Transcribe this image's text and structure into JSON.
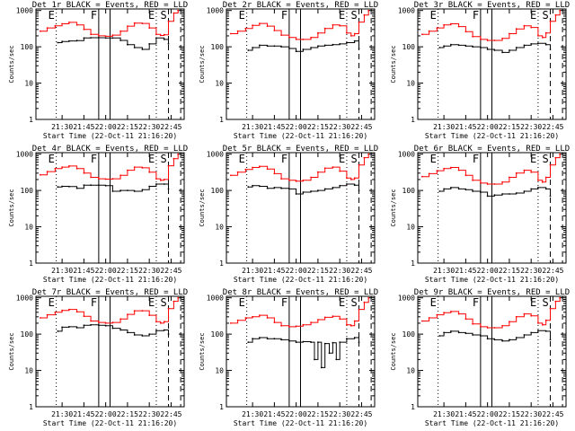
{
  "colors": {
    "events": "#000000",
    "lld": "#ff0000",
    "marker": "#000000",
    "background": "#ffffff"
  },
  "common": {
    "ylabel": "Counts/sec",
    "xlabel": "Start Time (22-Oct-11 21:16:20)",
    "xticks": [
      "21:30",
      "21:45",
      "22:00",
      "22:15",
      "22:30",
      "22:45"
    ],
    "yticks": [
      "1",
      "10",
      "100",
      "1000"
    ],
    "markers": [
      {
        "label": "E",
        "style": "dotted"
      },
      {
        "label": "F",
        "style": "solid"
      },
      {
        "label": "",
        "style": "solid"
      },
      {
        "label": "E",
        "style": "dotted"
      },
      {
        "label": "S",
        "style": "dashed"
      },
      {
        "label": "",
        "style": "dashed"
      }
    ]
  },
  "chart_data": [
    {
      "type": "line",
      "title": "Det 1r BLACK = Events, RED = LLD",
      "xlabel": "Start Time (22-Oct-11 21:16:20)",
      "ylabel": "Counts/sec",
      "ylog": true,
      "ylim": [
        1,
        1100
      ],
      "series": [
        {
          "key": "events",
          "x": [
            21.45,
            21.5,
            21.58,
            21.67,
            21.75,
            21.83,
            21.92,
            22.0,
            22.08,
            22.17,
            22.25,
            22.33,
            22.42,
            22.5,
            22.58,
            22.67,
            22.72
          ],
          "values": [
            130,
            140,
            145,
            148,
            175,
            178,
            178,
            175,
            175,
            150,
            115,
            95,
            85,
            120,
            175,
            160,
            120
          ]
        },
        {
          "key": "lld",
          "x": [
            21.25,
            21.33,
            21.42,
            21.5,
            21.58,
            21.67,
            21.75,
            21.83,
            21.92,
            22.0,
            22.08,
            22.17,
            22.25,
            22.33,
            22.42,
            22.5,
            22.58,
            22.63,
            22.67,
            22.72,
            22.78,
            22.83
          ],
          "values": [
            270,
            330,
            380,
            430,
            470,
            400,
            300,
            220,
            200,
            195,
            210,
            270,
            370,
            450,
            440,
            330,
            220,
            205,
            215,
            500,
            850,
            1000
          ]
        }
      ]
    },
    {
      "type": "line",
      "title": "Det 2r BLACK = Events, RED = LLD",
      "xlabel": "Start Time (22-Oct-11 21:16:20)",
      "ylabel": "Counts/sec",
      "ylog": true,
      "ylim": [
        1,
        1100
      ],
      "series": [
        {
          "key": "events",
          "x": [
            21.45,
            21.5,
            21.58,
            21.67,
            21.75,
            21.83,
            21.92,
            22.0,
            22.08,
            22.17,
            22.25,
            22.33,
            22.42,
            22.5,
            22.58,
            22.67,
            22.72
          ],
          "values": [
            80,
            95,
            110,
            105,
            105,
            100,
            90,
            75,
            85,
            95,
            105,
            110,
            115,
            120,
            130,
            145,
            90
          ]
        },
        {
          "key": "lld",
          "x": [
            21.25,
            21.33,
            21.42,
            21.5,
            21.58,
            21.67,
            21.75,
            21.83,
            21.92,
            22.0,
            22.08,
            22.17,
            22.25,
            22.33,
            22.42,
            22.5,
            22.58,
            22.63,
            22.67,
            22.72,
            22.78,
            22.83
          ],
          "values": [
            230,
            270,
            320,
            390,
            440,
            370,
            280,
            210,
            180,
            160,
            160,
            180,
            240,
            320,
            400,
            380,
            240,
            200,
            230,
            480,
            750,
            1000
          ]
        }
      ]
    },
    {
      "type": "line",
      "title": "Det 3r BLACK = Events, RED = LLD",
      "xlabel": "Start Time (22-Oct-11 21:16:20)",
      "ylabel": "Counts/sec",
      "ylog": true,
      "ylim": [
        1,
        1100
      ],
      "series": [
        {
          "key": "events",
          "x": [
            21.45,
            21.5,
            21.58,
            21.67,
            21.75,
            21.83,
            21.92,
            22.0,
            22.08,
            22.17,
            22.25,
            22.33,
            22.42,
            22.5,
            22.58,
            22.67,
            22.72
          ],
          "values": [
            95,
            105,
            115,
            110,
            105,
            100,
            95,
            85,
            80,
            70,
            80,
            95,
            110,
            120,
            125,
            115,
            85
          ]
        },
        {
          "key": "lld",
          "x": [
            21.25,
            21.33,
            21.42,
            21.5,
            21.58,
            21.67,
            21.75,
            21.83,
            21.92,
            22.0,
            22.08,
            22.17,
            22.25,
            22.33,
            22.42,
            22.5,
            22.58,
            22.63,
            22.67,
            22.72,
            22.78,
            22.83
          ],
          "values": [
            220,
            270,
            330,
            400,
            430,
            360,
            260,
            190,
            160,
            150,
            150,
            170,
            230,
            310,
            380,
            340,
            200,
            180,
            240,
            500,
            750,
            1000
          ]
        }
      ]
    },
    {
      "type": "line",
      "title": "Det 4r BLACK = Events, RED = LLD",
      "xlabel": "Start Time (22-Oct-11 21:16:20)",
      "ylabel": "Counts/sec",
      "ylog": true,
      "ylim": [
        1,
        1100
      ],
      "series": [
        {
          "key": "events",
          "x": [
            21.45,
            21.5,
            21.58,
            21.67,
            21.75,
            21.83,
            21.92,
            22.0,
            22.08,
            22.17,
            22.25,
            22.33,
            22.42,
            22.5,
            22.58,
            22.67,
            22.72
          ],
          "values": [
            125,
            130,
            128,
            115,
            140,
            140,
            140,
            135,
            95,
            100,
            100,
            95,
            105,
            130,
            150,
            150,
            110
          ]
        },
        {
          "key": "lld",
          "x": [
            21.25,
            21.33,
            21.42,
            21.5,
            21.58,
            21.67,
            21.75,
            21.83,
            21.92,
            22.0,
            22.08,
            22.17,
            22.25,
            22.33,
            22.42,
            22.5,
            22.58,
            22.63,
            22.67,
            22.72,
            22.78,
            22.83
          ],
          "values": [
            270,
            330,
            400,
            440,
            470,
            400,
            300,
            230,
            210,
            205,
            210,
            260,
            360,
            440,
            420,
            320,
            210,
            190,
            200,
            480,
            750,
            1000
          ]
        }
      ]
    },
    {
      "type": "line",
      "title": "Det 5r BLACK = Events, RED = LLD",
      "xlabel": "Start Time (22-Oct-11 21:16:20)",
      "ylabel": "Counts/sec",
      "ylog": true,
      "ylim": [
        1,
        1100
      ],
      "series": [
        {
          "key": "events",
          "x": [
            21.45,
            21.5,
            21.58,
            21.67,
            21.75,
            21.83,
            21.92,
            22.0,
            22.08,
            22.17,
            22.25,
            22.33,
            22.42,
            22.5,
            22.58,
            22.67,
            22.72
          ],
          "values": [
            125,
            135,
            130,
            115,
            120,
            115,
            110,
            80,
            90,
            95,
            100,
            110,
            120,
            135,
            150,
            140,
            100
          ]
        },
        {
          "key": "lld",
          "x": [
            21.25,
            21.33,
            21.42,
            21.5,
            21.58,
            21.67,
            21.75,
            21.83,
            21.92,
            22.0,
            22.08,
            22.17,
            22.25,
            22.33,
            22.42,
            22.5,
            22.58,
            22.63,
            22.67,
            22.72,
            22.78,
            22.83
          ],
          "values": [
            260,
            320,
            380,
            430,
            460,
            390,
            290,
            210,
            190,
            180,
            190,
            230,
            320,
            410,
            440,
            340,
            220,
            200,
            220,
            500,
            800,
            1000
          ]
        }
      ]
    },
    {
      "type": "line",
      "title": "Det 6r BLACK = Events, RED = LLD",
      "xlabel": "Start Time (22-Oct-11 21:16:20)",
      "ylabel": "Counts/sec",
      "ylog": true,
      "ylim": [
        1,
        1100
      ],
      "series": [
        {
          "key": "events",
          "x": [
            21.45,
            21.5,
            21.58,
            21.67,
            21.75,
            21.83,
            21.92,
            22.0,
            22.08,
            22.17,
            22.25,
            22.33,
            22.42,
            22.5,
            22.58,
            22.67,
            22.72
          ],
          "values": [
            95,
            110,
            120,
            110,
            105,
            95,
            90,
            70,
            75,
            80,
            80,
            85,
            95,
            110,
            120,
            110,
            70
          ]
        },
        {
          "key": "lld",
          "x": [
            21.25,
            21.33,
            21.42,
            21.5,
            21.58,
            21.67,
            21.75,
            21.83,
            21.92,
            22.0,
            22.08,
            22.17,
            22.25,
            22.33,
            22.42,
            22.5,
            22.58,
            22.63,
            22.67,
            22.72,
            22.78,
            22.83
          ],
          "values": [
            240,
            290,
            350,
            400,
            430,
            360,
            260,
            190,
            160,
            150,
            150,
            170,
            230,
            300,
            360,
            320,
            190,
            170,
            230,
            500,
            800,
            1000
          ]
        }
      ]
    },
    {
      "type": "line",
      "title": "Det 7r BLACK = Events, RED = LLD",
      "xlabel": "Start Time (22-Oct-11 21:16:20)",
      "ylabel": "Counts/sec",
      "ylog": true,
      "ylim": [
        1,
        1100
      ],
      "series": [
        {
          "key": "events",
          "x": [
            21.45,
            21.5,
            21.58,
            21.67,
            21.75,
            21.83,
            21.92,
            22.0,
            22.08,
            22.17,
            22.25,
            22.33,
            22.42,
            22.5,
            22.58,
            22.67,
            22.72
          ],
          "values": [
            120,
            155,
            160,
            150,
            175,
            180,
            175,
            170,
            145,
            130,
            110,
            95,
            90,
            100,
            125,
            130,
            100
          ]
        },
        {
          "key": "lld",
          "x": [
            21.25,
            21.33,
            21.42,
            21.5,
            21.58,
            21.67,
            21.75,
            21.83,
            21.92,
            22.0,
            22.08,
            22.17,
            22.25,
            22.33,
            22.42,
            22.5,
            22.58,
            22.63,
            22.67,
            22.72,
            22.78,
            22.83
          ],
          "values": [
            280,
            340,
            400,
            450,
            480,
            410,
            310,
            230,
            210,
            200,
            210,
            260,
            350,
            440,
            440,
            330,
            220,
            200,
            220,
            500,
            800,
            1000
          ]
        }
      ]
    },
    {
      "type": "line",
      "title": "Det 8r BLACK = Events, RED = LLD",
      "xlabel": "Start Time (22-Oct-11 21:16:20)",
      "ylabel": "Counts/sec",
      "ylog": true,
      "ylim": [
        1,
        1100
      ],
      "series": [
        {
          "key": "events",
          "x": [
            21.45,
            21.5,
            21.58,
            21.67,
            21.75,
            21.83,
            21.92,
            22.0,
            22.08,
            22.17,
            22.21,
            22.25,
            22.29,
            22.33,
            22.38,
            22.42,
            22.46,
            22.5,
            22.58,
            22.67,
            22.72
          ],
          "values": [
            60,
            75,
            80,
            75,
            75,
            70,
            65,
            60,
            62,
            60,
            20,
            60,
            12,
            55,
            30,
            58,
            20,
            60,
            75,
            80,
            60
          ]
        },
        {
          "key": "lld",
          "x": [
            21.25,
            21.33,
            21.42,
            21.5,
            21.58,
            21.67,
            21.75,
            21.83,
            21.92,
            22.0,
            22.08,
            22.17,
            22.25,
            22.33,
            22.42,
            22.5,
            22.58,
            22.63,
            22.67,
            22.72,
            22.78,
            22.83
          ],
          "values": [
            200,
            240,
            280,
            300,
            330,
            280,
            210,
            170,
            160,
            165,
            180,
            210,
            250,
            290,
            310,
            260,
            180,
            170,
            230,
            480,
            750,
            1000
          ]
        }
      ]
    },
    {
      "type": "line",
      "title": "Det 9r BLACK = Events, RED = LLD",
      "xlabel": "Start Time (22-Oct-11 21:16:20)",
      "ylabel": "Counts/sec",
      "ylog": true,
      "ylim": [
        1,
        1100
      ],
      "series": [
        {
          "key": "events",
          "x": [
            21.45,
            21.5,
            21.58,
            21.67,
            21.75,
            21.83,
            21.92,
            22.0,
            22.08,
            22.17,
            22.25,
            22.33,
            22.42,
            22.5,
            22.58,
            22.67,
            22.72
          ],
          "values": [
            90,
            110,
            120,
            110,
            105,
            95,
            90,
            75,
            70,
            65,
            70,
            80,
            95,
            110,
            125,
            120,
            70
          ]
        },
        {
          "key": "lld",
          "x": [
            21.25,
            21.33,
            21.42,
            21.5,
            21.58,
            21.67,
            21.75,
            21.83,
            21.92,
            22.0,
            22.08,
            22.17,
            22.25,
            22.33,
            22.42,
            22.5,
            22.58,
            22.63,
            22.67,
            22.72,
            22.78,
            22.83
          ],
          "values": [
            230,
            280,
            340,
            390,
            420,
            360,
            260,
            190,
            160,
            150,
            150,
            170,
            220,
            300,
            360,
            320,
            200,
            180,
            240,
            500,
            800,
            1000
          ]
        }
      ]
    }
  ]
}
